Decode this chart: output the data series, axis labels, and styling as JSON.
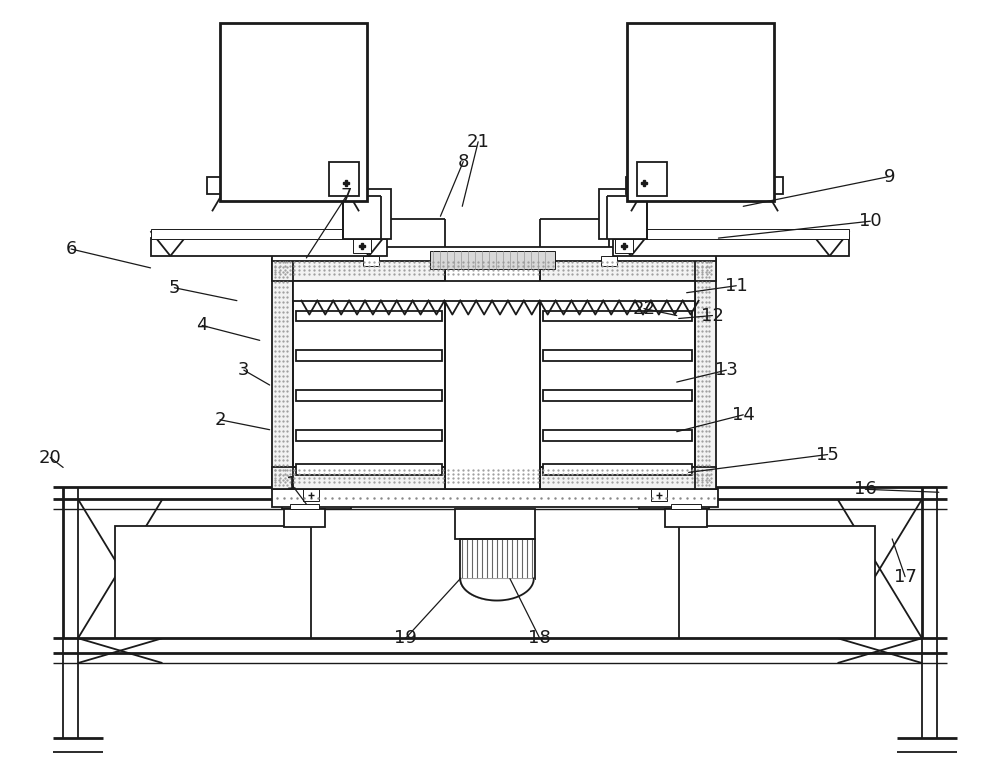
{
  "bg": "#ffffff",
  "lc": "#1a1a1a",
  "lw": 1.3,
  "lw_thick": 2.0,
  "lw_thin": 0.7,
  "fig_w": 10.0,
  "fig_h": 7.79,
  "annotations": [
    [
      "1",
      290,
      485,
      305,
      505
    ],
    [
      "2",
      218,
      420,
      268,
      430
    ],
    [
      "3",
      242,
      370,
      268,
      385
    ],
    [
      "4",
      200,
      325,
      258,
      340
    ],
    [
      "5",
      172,
      287,
      235,
      300
    ],
    [
      "6",
      68,
      248,
      148,
      267
    ],
    [
      "7",
      345,
      195,
      305,
      257
    ],
    [
      "8",
      463,
      160,
      440,
      215
    ],
    [
      "9",
      892,
      175,
      745,
      205
    ],
    [
      "10",
      873,
      220,
      720,
      237
    ],
    [
      "11",
      738,
      285,
      688,
      292
    ],
    [
      "12",
      714,
      315,
      680,
      318
    ],
    [
      "13",
      728,
      370,
      678,
      382
    ],
    [
      "14",
      745,
      415,
      678,
      432
    ],
    [
      "15",
      830,
      455,
      690,
      473
    ],
    [
      "16",
      868,
      490,
      942,
      493
    ],
    [
      "17",
      908,
      578,
      895,
      540
    ],
    [
      "18",
      540,
      640,
      510,
      580
    ],
    [
      "19",
      405,
      640,
      460,
      580
    ],
    [
      "20",
      47,
      458,
      60,
      468
    ],
    [
      "21",
      478,
      140,
      462,
      205
    ],
    [
      "22",
      645,
      308,
      678,
      315
    ]
  ]
}
